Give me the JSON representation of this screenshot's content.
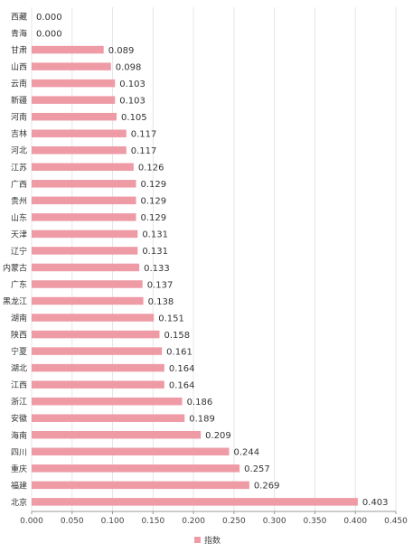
{
  "chart_data": {
    "type": "bar",
    "orientation": "horizontal",
    "categories": [
      "西藏",
      "青海",
      "甘肃",
      "山西",
      "云南",
      "新疆",
      "河南",
      "吉林",
      "河北",
      "江苏",
      "广西",
      "贵州",
      "山东",
      "天津",
      "辽宁",
      "内蒙古",
      "广东",
      "黑龙江",
      "湖南",
      "陕西",
      "宁夏",
      "湖北",
      "江西",
      "浙江",
      "安徽",
      "海南",
      "四川",
      "重庆",
      "福建",
      "北京"
    ],
    "values": [
      0.0,
      0.0,
      0.089,
      0.098,
      0.103,
      0.103,
      0.105,
      0.117,
      0.117,
      0.126,
      0.129,
      0.129,
      0.129,
      0.131,
      0.131,
      0.133,
      0.137,
      0.138,
      0.151,
      0.158,
      0.161,
      0.164,
      0.164,
      0.186,
      0.189,
      0.209,
      0.244,
      0.257,
      0.269,
      0.403
    ],
    "value_labels": [
      "0.000",
      "0.000",
      "0.089",
      "0.098",
      "0.103",
      "0.103",
      "0.105",
      "0.117",
      "0.117",
      "0.126",
      "0.129",
      "0.129",
      "0.129",
      "0.131",
      "0.131",
      "0.133",
      "0.137",
      "0.138",
      "0.151",
      "0.158",
      "0.161",
      "0.164",
      "0.164",
      "0.186",
      "0.189",
      "0.209",
      "0.244",
      "0.257",
      "0.269",
      "0.403"
    ],
    "xlim": [
      0,
      0.45
    ],
    "xticks": [
      "0.000",
      "0.050",
      "0.100",
      "0.150",
      "0.200",
      "0.250",
      "0.300",
      "0.350",
      "0.400",
      "0.450"
    ],
    "series": [
      {
        "name": "指数"
      }
    ],
    "legend_position": "bottom",
    "grid": true,
    "colors": {
      "bar": "#ee9ba6",
      "grid": "#e6e6e6",
      "axis": "#999999"
    }
  }
}
